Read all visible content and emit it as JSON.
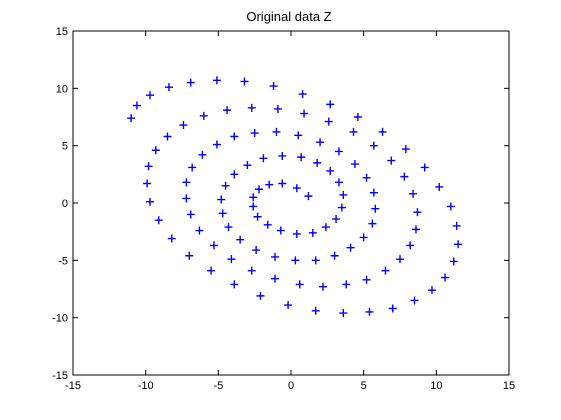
{
  "chart_data": {
    "type": "scatter",
    "title": "Original data Z",
    "xlabel": "",
    "ylabel": "",
    "xlim": [
      -15,
      15
    ],
    "ylim": [
      -15,
      15
    ],
    "x_ticks": [
      -15,
      -10,
      -5,
      0,
      5,
      10,
      15
    ],
    "y_ticks": [
      -15,
      -10,
      -5,
      0,
      5,
      10,
      15
    ],
    "grid": false,
    "legend": "none",
    "marker": "+",
    "marker_color": "#0000ff",
    "series": [
      {
        "x": [
          1.2,
          0.4,
          -0.6,
          -1.5,
          -2.2,
          -2.6,
          -2.6,
          -2.3,
          -1.6,
          -0.7,
          0.4,
          1.5,
          2.4,
          3.1,
          3.5,
          3.6,
          3.3,
          2.7,
          1.8,
          0.7,
          -0.6,
          -1.9,
          -3.0,
          -3.9,
          -4.5,
          -4.8,
          -4.7,
          -4.3,
          -3.5,
          -2.4,
          -1.1,
          0.3,
          1.7,
          3.0,
          4.1,
          5.0,
          5.6,
          5.8,
          5.7,
          5.2,
          4.4,
          3.3,
          2.0,
          0.5,
          -1.0,
          -2.5,
          -3.9,
          -5.1,
          -6.1,
          -6.8,
          -7.2,
          -7.2,
          -6.9,
          -6.3,
          -5.3,
          -4.1,
          -2.7,
          -1.1,
          0.6,
          2.2,
          3.8,
          5.2,
          6.5,
          7.5,
          8.2,
          8.6,
          8.7,
          8.4,
          7.8,
          6.9,
          5.7,
          4.3,
          2.6,
          0.9,
          -0.9,
          -2.7,
          -4.4,
          -6.0,
          -7.4,
          -8.5,
          -9.3,
          -9.8,
          -9.9,
          -9.7,
          -9.1,
          -8.2,
          -7.0,
          -5.5,
          -3.9,
          -2.1,
          -0.2,
          1.7,
          3.6,
          5.4,
          7.0,
          8.5,
          9.7,
          10.6,
          11.2,
          11.5,
          11.4,
          11.0,
          10.2,
          9.2,
          7.9,
          6.3,
          4.6,
          2.7,
          0.8,
          -1.2,
          -3.2,
          -5.1,
          -6.9,
          -8.4,
          -9.7,
          -10.6,
          -11.0
        ],
        "y": [
          0.6,
          1.3,
          1.7,
          1.6,
          1.2,
          0.5,
          -0.3,
          -1.2,
          -1.9,
          -2.4,
          -2.7,
          -2.6,
          -2.1,
          -1.4,
          -0.4,
          0.7,
          1.8,
          2.8,
          3.5,
          4.0,
          4.1,
          3.9,
          3.3,
          2.5,
          1.5,
          0.3,
          -0.9,
          -2.1,
          -3.2,
          -4.1,
          -4.7,
          -5.0,
          -5.0,
          -4.6,
          -3.9,
          -3.0,
          -1.8,
          -0.5,
          0.9,
          2.2,
          3.4,
          4.5,
          5.3,
          5.9,
          6.2,
          6.1,
          5.8,
          5.1,
          4.2,
          3.1,
          1.8,
          0.4,
          -1.0,
          -2.4,
          -3.7,
          -4.9,
          -5.9,
          -6.6,
          -7.1,
          -7.3,
          -7.1,
          -6.7,
          -5.9,
          -4.9,
          -3.7,
          -2.3,
          -0.8,
          0.8,
          2.3,
          3.7,
          5.0,
          6.2,
          7.1,
          7.8,
          8.2,
          8.3,
          8.1,
          7.6,
          6.8,
          5.8,
          4.6,
          3.2,
          1.7,
          0.1,
          -1.5,
          -3.1,
          -4.6,
          -5.9,
          -7.1,
          -8.1,
          -8.9,
          -9.4,
          -9.6,
          -9.5,
          -9.2,
          -8.5,
          -7.6,
          -6.5,
          -5.1,
          -3.6,
          -2.0,
          -0.3,
          1.4,
          3.1,
          4.7,
          6.2,
          7.5,
          8.6,
          9.5,
          10.2,
          10.6,
          10.7,
          10.5,
          10.1,
          9.4,
          8.5,
          7.4
        ]
      }
    ]
  }
}
